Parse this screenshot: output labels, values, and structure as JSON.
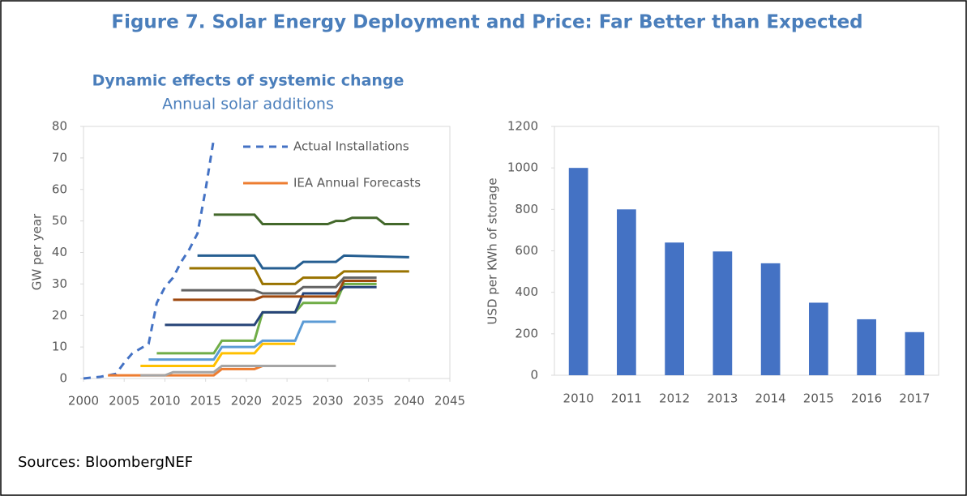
{
  "figure_title": "Figure 7. Solar Energy Deployment and Price: Far Better than Expected",
  "source": "Sources: BloombergNEF",
  "chart_data": [
    {
      "type": "line",
      "title": "Dynamic effects of systemic change",
      "subtitle": "Annual solar additions",
      "ylabel": "GW per year",
      "xlim": [
        2000,
        2045
      ],
      "xticks": [
        2000,
        2005,
        2010,
        2015,
        2020,
        2025,
        2030,
        2035,
        2040,
        2045
      ],
      "ylim": [
        0,
        80
      ],
      "yticks": [
        0,
        10,
        20,
        30,
        40,
        50,
        60,
        70,
        80
      ],
      "grid": false,
      "series": [
        {
          "name": "Actual Installations",
          "color": "#4472c4",
          "line_style": "dashed",
          "x": [
            2000,
            2001,
            2002,
            2003,
            2004,
            2005,
            2006,
            2007,
            2008,
            2009,
            2010,
            2011,
            2012,
            2013,
            2014,
            2015,
            2016
          ],
          "values": [
            0,
            0.3,
            0.5,
            1,
            1.5,
            5,
            8,
            9.5,
            11,
            24,
            29,
            32,
            37,
            41,
            46,
            60,
            76
          ]
        },
        {
          "name": "IEA Annual Forecasts",
          "color": "#ed7d31",
          "line_style": "solid",
          "x": [
            2003,
            2016,
            2017,
            2021,
            2022
          ],
          "values": [
            1,
            1,
            3,
            3,
            4
          ]
        },
        {
          "color": "#a5a5a5",
          "line_style": "solid",
          "x": [
            2007,
            2010,
            2011,
            2016,
            2017,
            2031
          ],
          "values": [
            1,
            1,
            2,
            2,
            4,
            4
          ]
        },
        {
          "color": "#ffc000",
          "line_style": "solid",
          "x": [
            2007,
            2016,
            2017,
            2021,
            2022,
            2026
          ],
          "values": [
            4,
            4,
            8,
            8,
            11,
            11
          ]
        },
        {
          "color": "#5b9bd5",
          "line_style": "solid",
          "x": [
            2008,
            2016,
            2017,
            2021,
            2022,
            2026,
            2027,
            2031
          ],
          "values": [
            6,
            6,
            10,
            10,
            12,
            12,
            18,
            18
          ]
        },
        {
          "color": "#70ad47",
          "line_style": "solid",
          "x": [
            2009,
            2016,
            2017,
            2021,
            2022,
            2026,
            2027,
            2031,
            2032,
            2036
          ],
          "values": [
            8,
            8,
            12,
            12,
            21,
            21,
            24,
            24,
            30,
            30
          ]
        },
        {
          "color": "#264478",
          "line_style": "solid",
          "x": [
            2010,
            2021,
            2022,
            2026,
            2027,
            2031,
            2032,
            2036
          ],
          "values": [
            17,
            17,
            21,
            21,
            27,
            27,
            29,
            29
          ]
        },
        {
          "color": "#9e480e",
          "line_style": "solid",
          "x": [
            2011,
            2021,
            2022,
            2031,
            2032,
            2036
          ],
          "values": [
            25,
            25,
            26,
            26,
            31,
            31
          ]
        },
        {
          "color": "#636363",
          "line_style": "solid",
          "x": [
            2012,
            2021,
            2022,
            2026,
            2027,
            2031,
            2032,
            2036
          ],
          "values": [
            28,
            28,
            27,
            27,
            29,
            29,
            32,
            32
          ]
        },
        {
          "color": "#997300",
          "line_style": "solid",
          "x": [
            2013,
            2021,
            2022,
            2026,
            2027,
            2031,
            2032,
            2040
          ],
          "values": [
            35,
            35,
            30,
            30,
            32,
            32,
            34,
            34
          ]
        },
        {
          "color": "#255e91",
          "line_style": "solid",
          "x": [
            2014,
            2021,
            2022,
            2026,
            2027,
            2031,
            2032,
            2040
          ],
          "values": [
            39,
            39,
            35,
            35,
            37,
            37,
            39,
            38.5
          ]
        },
        {
          "color": "#43682b",
          "line_style": "solid",
          "x": [
            2016,
            2021,
            2022,
            2030,
            2031,
            2032,
            2033,
            2036,
            2037,
            2040
          ],
          "values": [
            52,
            52,
            49,
            49,
            50,
            50,
            51,
            51,
            49,
            49
          ]
        }
      ]
    },
    {
      "type": "bar",
      "ylabel": "USD per KWh of storage",
      "categories": [
        "2010",
        "2011",
        "2012",
        "2013",
        "2014",
        "2015",
        "2016",
        "2017"
      ],
      "values": [
        1000,
        800,
        640,
        597,
        540,
        350,
        270,
        208
      ],
      "color": "#4472c4",
      "ylim": [
        0,
        1200
      ],
      "yticks": [
        0,
        200,
        400,
        600,
        800,
        1000,
        1200
      ],
      "grid": false
    }
  ]
}
